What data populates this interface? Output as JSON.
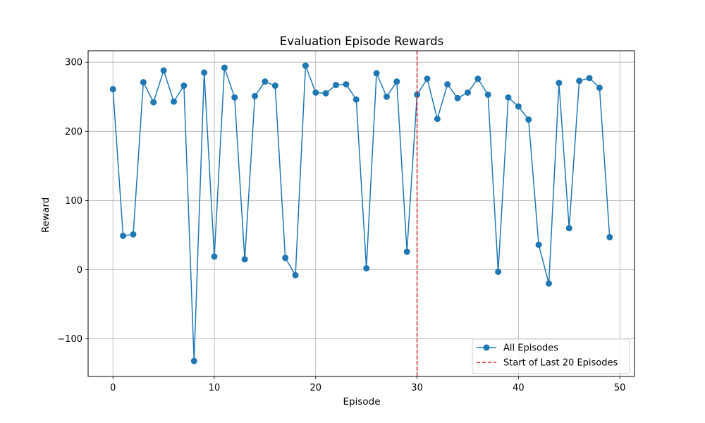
{
  "chart_data": {
    "type": "line",
    "title": "Evaluation Episode Rewards",
    "xlabel": "Episode",
    "ylabel": "Reward",
    "xlim": [
      -2.45,
      51.45
    ],
    "ylim": [
      -154.4,
      316.5
    ],
    "xticks": [
      0,
      10,
      20,
      30,
      40,
      50
    ],
    "yticks": [
      -100,
      0,
      100,
      200,
      300
    ],
    "ytick_labels": [
      "−100",
      "0",
      "100",
      "200",
      "300"
    ],
    "grid": true,
    "legend_position": "bottom-right",
    "series": [
      {
        "name": "All Episodes",
        "color": "#1f77b4",
        "marker": "circle",
        "x": [
          0,
          1,
          2,
          3,
          4,
          5,
          6,
          7,
          8,
          9,
          10,
          11,
          12,
          13,
          14,
          15,
          16,
          17,
          18,
          19,
          20,
          21,
          22,
          23,
          24,
          25,
          26,
          27,
          28,
          29,
          30,
          31,
          32,
          33,
          34,
          35,
          36,
          37,
          38,
          39,
          40,
          41,
          42,
          43,
          44,
          45,
          46,
          47,
          48,
          49
        ],
        "y": [
          261,
          49,
          51,
          271,
          242,
          288,
          243,
          266,
          -132,
          285,
          19,
          292,
          249,
          15,
          251,
          272,
          266,
          17,
          -8,
          295,
          256,
          255,
          267,
          268,
          246,
          2,
          284,
          250,
          272,
          26,
          253,
          276,
          218,
          268,
          248,
          256,
          276,
          253,
          -3,
          249,
          236,
          217,
          36,
          -20,
          270,
          60,
          273,
          277,
          263,
          47
        ]
      }
    ],
    "vlines": [
      {
        "name": "Start of Last 20 Episodes",
        "x": 30,
        "color": "#d62728",
        "style": "dashed"
      }
    ]
  }
}
